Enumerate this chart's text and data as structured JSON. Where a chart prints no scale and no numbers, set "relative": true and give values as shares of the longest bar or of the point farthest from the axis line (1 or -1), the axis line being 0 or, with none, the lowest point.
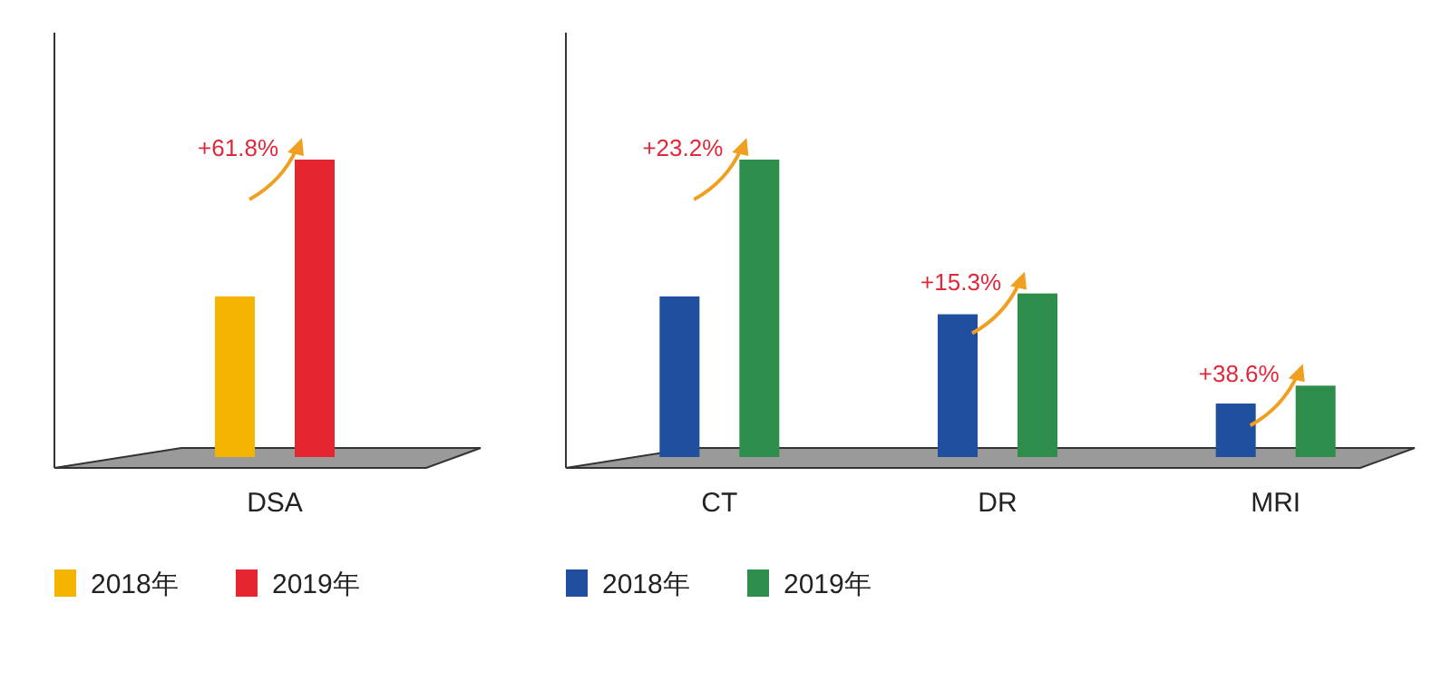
{
  "chart_data": [
    {
      "type": "bar",
      "relative": true,
      "categories": [
        "DSA"
      ],
      "legend": "bottom left",
      "series": [
        {
          "name": "2018年",
          "color": "#f5b400",
          "values": [
            0.54
          ]
        },
        {
          "name": "2019年",
          "color": "#e52530",
          "values": [
            1
          ]
        }
      ],
      "annotations": [
        "+61.8%"
      ]
    },
    {
      "type": "bar",
      "relative": true,
      "categories": [
        "CT",
        "DR",
        "MRI"
      ],
      "legend": "bottom left",
      "series": [
        {
          "name": "2018年",
          "color": "#1f4f9e",
          "values": [
            0.54,
            0.48,
            0.18
          ]
        },
        {
          "name": "2019年",
          "color": "#2e8d4a",
          "values": [
            1,
            0.55,
            0.24
          ]
        }
      ],
      "annotations": [
        "+23.2%",
        "+15.3%",
        "+38.6%"
      ]
    }
  ]
}
